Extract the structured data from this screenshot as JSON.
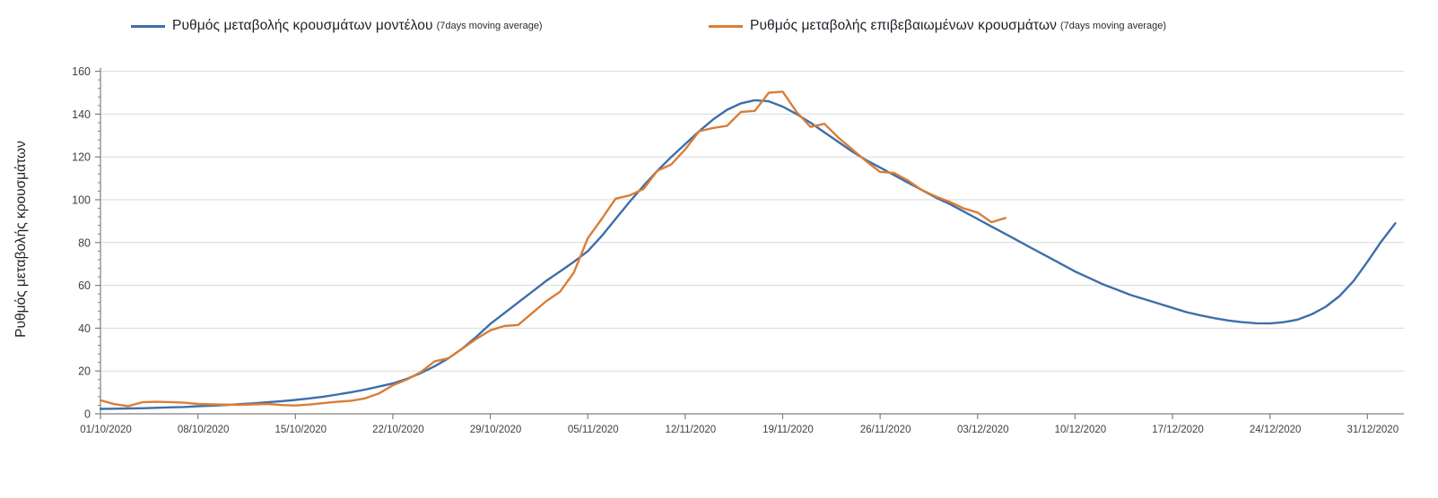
{
  "legend": {
    "items": [
      {
        "label": "Ρυθμός μεταβολής κρουσμάτων μοντέλου",
        "sub": "(7days moving average)",
        "color": "#3E6EAA"
      },
      {
        "label": "Ρυθμός μεταβολής επιβεβαιωμένων κρουσμάτων",
        "sub": "(7days moving average)",
        "color": "#D97E38"
      }
    ]
  },
  "axes": {
    "y": {
      "title": "Ρυθμός μεταβολής κρουσμάτων"
    }
  },
  "colors": {
    "grid": "#D9D9D9",
    "axis": "#7F7F7F",
    "tick_text": "#404040",
    "series_model": "#3E6EAA",
    "series_confirmed": "#D97E38"
  },
  "chart_data": {
    "type": "line",
    "title": "",
    "xlabel": "",
    "ylabel": "Ρυθμός μεταβολής κρουσμάτων",
    "ylim": [
      0,
      160
    ],
    "y_tick_step": 20,
    "y_tick_labels": [
      "0",
      "20",
      "40",
      "60",
      "80",
      "100",
      "120",
      "140",
      "160"
    ],
    "x_tick_labels": [
      "01/10/2020",
      "08/10/2020",
      "15/10/2020",
      "22/10/2020",
      "29/10/2020",
      "05/11/2020",
      "12/11/2020",
      "19/11/2020",
      "26/11/2020",
      "03/12/2020",
      "10/12/2020",
      "17/12/2020",
      "24/12/2020",
      "31/12/2020"
    ],
    "x_tick_interval_days": 7,
    "x_start_date": "01/10/2020",
    "grid": "horizontal-only",
    "legend_position": "top",
    "series": [
      {
        "name": "Ρυθμός μεταβολής κρουσμάτων μοντέλου (7days moving average)",
        "color": "#3E6EAA",
        "start_day": 0,
        "values": [
          2.3,
          2.4,
          2.5,
          2.6,
          2.8,
          3.0,
          3.2,
          3.5,
          3.8,
          4.1,
          4.5,
          4.9,
          5.4,
          5.9,
          6.5,
          7.2,
          8.0,
          9.0,
          10.1,
          11.3,
          12.7,
          14.2,
          16.3,
          19.0,
          22.2,
          26.0,
          30.5,
          36.0,
          42.0,
          47.0,
          52.0,
          57.0,
          62.0,
          66.5,
          71.0,
          76.0,
          83.0,
          91.0,
          99.0,
          106.5,
          113.5,
          120.0,
          126.0,
          132.0,
          137.5,
          142.0,
          145.0,
          146.5,
          146.0,
          143.5,
          140.0,
          136.0,
          131.5,
          127.0,
          122.5,
          118.5,
          115.0,
          111.5,
          108.0,
          104.5,
          101.0,
          98.0,
          94.5,
          91.0,
          87.5,
          84.0,
          80.5,
          77.0,
          73.5,
          70.0,
          66.5,
          63.5,
          60.5,
          58.0,
          55.5,
          53.5,
          51.5,
          49.5,
          47.5,
          46.0,
          44.7,
          43.6,
          42.8,
          42.3,
          42.2,
          42.8,
          44.0,
          46.5,
          50.0,
          55.0,
          62.0,
          71.0,
          80.5,
          89.0
        ]
      },
      {
        "name": "Ρυθμός μεταβολής επιβεβαιωμένων κρουσμάτων (7days moving average)",
        "color": "#D97E38",
        "start_day": 0,
        "values": [
          6.3,
          4.5,
          3.6,
          5.4,
          5.6,
          5.5,
          5.2,
          4.6,
          4.4,
          4.3,
          4.2,
          4.4,
          4.6,
          4.1,
          3.9,
          4.3,
          5.0,
          5.6,
          6.1,
          7.2,
          9.5,
          13.3,
          16.0,
          19.5,
          24.5,
          26.0,
          30.5,
          35.0,
          39.0,
          41.0,
          41.5,
          47.0,
          52.5,
          57.0,
          66.0,
          82.0,
          91.0,
          100.5,
          102.0,
          105.0,
          113.5,
          116.5,
          123.5,
          132.0,
          133.5,
          134.5,
          141.0,
          141.5,
          150.0,
          150.5,
          141.0,
          134.0,
          135.5,
          129.0,
          123.5,
          118.0,
          113.0,
          112.5,
          109.0,
          104.5,
          101.5,
          99.0,
          96.0,
          94.0,
          89.5,
          91.5
        ]
      }
    ]
  }
}
